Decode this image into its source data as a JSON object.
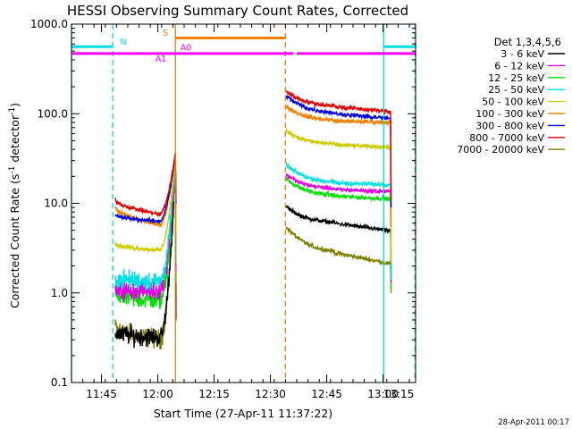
{
  "chart_data": {
    "type": "line",
    "title": "HESSI Observing Summary Count Rates, Corrected",
    "xlabel": "Start Time (27-Apr-11 11:37:22)",
    "ylabel_parts": [
      "Corrected Count Rate (s",
      "-1",
      " detector",
      "-1",
      ")"
    ],
    "yscale": "log",
    "ylim": [
      0.1,
      1000
    ],
    "xlim": [
      0,
      5500
    ],
    "x_unit": "seconds since start",
    "x_ticks": [
      {
        "t": 480,
        "label": "11:45"
      },
      {
        "t": 1380,
        "label": "12:00"
      },
      {
        "t": 2280,
        "label": "12:15"
      },
      {
        "t": 3180,
        "label": "12:30"
      },
      {
        "t": 4080,
        "label": "12:45"
      },
      {
        "t": 4980,
        "label": "13:00"
      },
      {
        "t": 5880,
        "label": "13:15"
      }
    ],
    "y_ticks": [
      {
        "v": 0.1,
        "label": "0.1"
      },
      {
        "v": 1,
        "label": "1.0"
      },
      {
        "v": 10,
        "label": "10.0"
      },
      {
        "v": 100,
        "label": "100.0"
      },
      {
        "v": 1000,
        "label": "1000.0"
      }
    ],
    "legend_title": "Det 1,3,4,5,6",
    "legend_position": "right",
    "intervals": [
      {
        "t0": 700,
        "t1": 1420,
        "t_end": 1660
      },
      {
        "t0": 3430,
        "t1": 4200,
        "t_end": 5100
      }
    ],
    "series": [
      {
        "name": "3 - 6 keV",
        "color": "#000000",
        "a": [
          0.36,
          0.32,
          0.55
        ],
        "b": [
          9.2,
          6.0,
          4.9
        ],
        "drop": 1.5
      },
      {
        "name": "6 - 12 keV",
        "color": "#e000e0",
        "a": [
          1.05,
          1.08,
          1.2
        ],
        "b": [
          21.0,
          14.3,
          13.5
        ],
        "drop": 1.3
      },
      {
        "name": "12 - 25 keV",
        "color": "#00e000",
        "a": [
          0.95,
          0.82,
          0.95
        ],
        "b": [
          19.0,
          12.0,
          11.2
        ],
        "drop": 1.1
      },
      {
        "name": "25 - 50 keV",
        "color": "#00e0e0",
        "a": [
          1.45,
          1.35,
          1.5
        ],
        "b": [
          27.0,
          16.8,
          16.2
        ],
        "drop": 1.4
      },
      {
        "name": "50 - 100 keV",
        "color": "#cccc00",
        "a": [
          3.5,
          3.0,
          3.6
        ],
        "b": [
          65.0,
          45.0,
          42.0
        ],
        "drop": 2.2
      },
      {
        "name": "100 - 300 keV",
        "color": "#f08000",
        "a": [
          9.0,
          5.7,
          6.5
        ],
        "b": [
          122.0,
          83.0,
          80.0
        ],
        "drop": 5.5
      },
      {
        "name": "300 - 800 keV",
        "color": "#0000e0",
        "a": [
          7.4,
          6.3,
          6.8
        ],
        "b": [
          160.0,
          100.0,
          88.0
        ],
        "drop": 9.0
      },
      {
        "name": "800 - 7000 keV",
        "color": "#e00000",
        "a": [
          11.0,
          7.5,
          8.5
        ],
        "b": [
          180.0,
          120.0,
          105.0
        ],
        "drop": 11.0
      },
      {
        "name": "7000 - 20000 keV",
        "color": "#808000",
        "a": [
          0.42,
          0.3,
          0.42
        ],
        "b": [
          5.5,
          2.8,
          2.1
        ],
        "drop": 1.0
      }
    ],
    "attenuator_state": [
      {
        "label": "A1",
        "color": "#ff00ff",
        "t0": 0,
        "t1": 3550,
        "level": 470
      },
      {
        "label": "A0",
        "color": "#ff00ff",
        "t0": 3600,
        "t1": 5500,
        "level": 470
      }
    ],
    "status_bars": [
      {
        "label": "N",
        "color": "#00e0e0",
        "t0": 0,
        "t1": 660,
        "level": 560
      },
      {
        "label": "N",
        "color": "#00e0e0",
        "t0": 4990,
        "t1": 5500,
        "level": 560
      },
      {
        "label": "S",
        "color": "#f08000",
        "t0": 1660,
        "t1": 3420,
        "level": 700
      }
    ],
    "vertical_markers": [
      {
        "t": 0,
        "color": "#00e0e0",
        "style": "solid"
      },
      {
        "t": 660,
        "color": "#00e0e0",
        "style": "dashed"
      },
      {
        "t": 1660,
        "color": "#f08000",
        "style": "solid"
      },
      {
        "t": 3420,
        "color": "#f08000",
        "style": "dashed"
      },
      {
        "t": 4990,
        "color": "#00e0e0",
        "style": "solid"
      },
      {
        "t": 5490,
        "color": "#00e0e0",
        "style": "dashed"
      }
    ],
    "marker_labels": [
      {
        "text": "N",
        "color": "#00e0e0",
        "t": 830,
        "v": 590
      },
      {
        "text": "S",
        "color": "#f08000",
        "t": 1500,
        "v": 740
      },
      {
        "text": "A1",
        "color": "#ff00ff",
        "t": 1430,
        "v": 380
      },
      {
        "text": "A0",
        "color": "#ff00ff",
        "t": 1830,
        "v": 510
      }
    ],
    "footer_date": "28-Apr-2011 00:17"
  }
}
